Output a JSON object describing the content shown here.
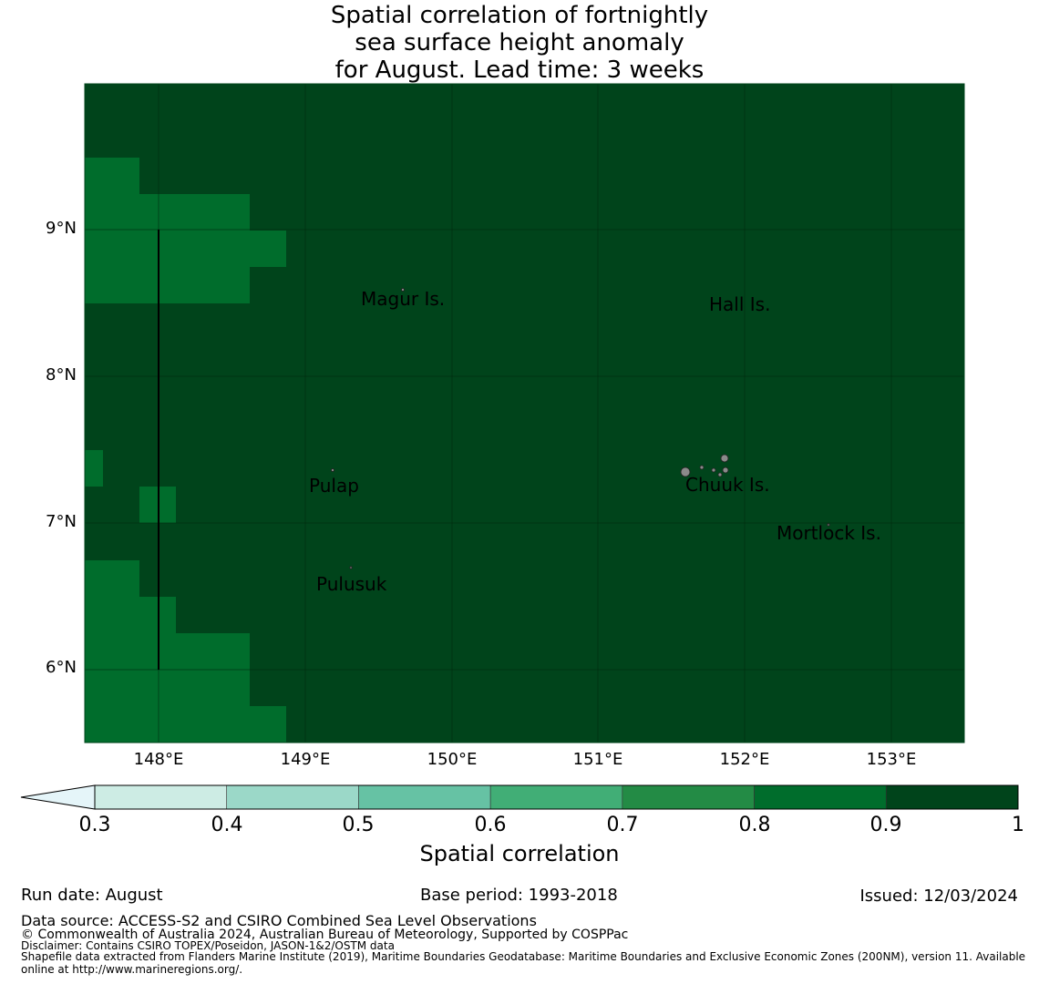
{
  "title": {
    "line1": "Spatial correlation of fortnightly",
    "line2": "sea surface height anomaly",
    "line3": "for August. Lead time: 3 weeks"
  },
  "map": {
    "lat_labels": [
      "9°N",
      "8°N",
      "7°N",
      "6°N"
    ],
    "lon_labels": [
      "148°E",
      "149°E",
      "150°E",
      "151°E",
      "152°E",
      "153°E"
    ],
    "places": [
      {
        "name": "Magur Is.",
        "lon": 149.6,
        "lat": 8.55
      },
      {
        "name": "Hall Is.",
        "lon": 152.0,
        "lat": 8.5
      },
      {
        "name": "Pulap",
        "lon": 149.2,
        "lat": 7.3
      },
      {
        "name": "Chuuk Is.",
        "lon": 151.85,
        "lat": 7.3
      },
      {
        "name": "Mortlock Is.",
        "lon": 152.6,
        "lat": 6.95
      },
      {
        "name": "Pulusuk",
        "lon": 149.3,
        "lat": 6.65
      }
    ],
    "colors": {
      "range_0_9_1": "#00441b",
      "range_0_8_0_9": "#006d2c"
    }
  },
  "colorbar": {
    "ticks": [
      "0.3",
      "0.4",
      "0.5",
      "0.6",
      "0.7",
      "0.8",
      "0.9",
      "1"
    ],
    "colors": [
      "#cdece4",
      "#9bd8c8",
      "#66c2a4",
      "#41ae76",
      "#238b45",
      "#006d2c",
      "#00441b"
    ],
    "extend_color": "#e5f5f9",
    "label": "Spatial correlation"
  },
  "footer": {
    "run_date": "Run date: August",
    "base_period": "Base period: 1993-2018",
    "issued": "Issued: 12/03/2024",
    "data_source": "Data source: ACCESS-S2 and CSIRO Combined Sea Level Observations",
    "copyright": "© Commonwealth of Australia 2024, Australian Bureau of Meteorology, Supported by COSPPac",
    "disclaimer": "Disclaimer: Contains CSIRO TOPEX/Poseidon, JASON-1&2/OSTM data",
    "shapefile_line1": "Shapefile data extracted from Flanders Marine Institute (2019), Maritime Boundaries Geodatabase: Maritime Boundaries and Exclusive Economic Zones (200NM), version 11. Available",
    "shapefile_line2": "online at http://www.marineregions.org/."
  }
}
